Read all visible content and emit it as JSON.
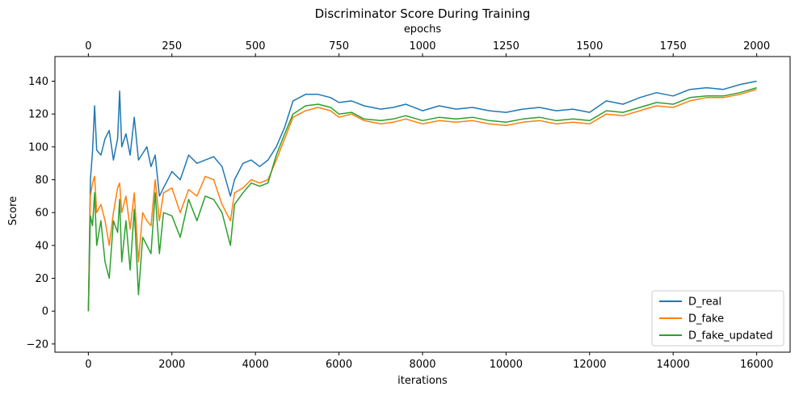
{
  "chart_data": {
    "type": "line",
    "title": "Discriminator Score During Training",
    "xlabel": "iterations",
    "ylabel": "Score",
    "secondary_xlabel": "epochs",
    "xlim": [
      -800,
      16800
    ],
    "ylim": [
      -25,
      155
    ],
    "secondary_xlim": [
      -100,
      2100
    ],
    "x_ticks": [
      0,
      2000,
      4000,
      6000,
      8000,
      10000,
      12000,
      14000,
      16000
    ],
    "x_tick_labels": [
      "0",
      "2000",
      "4000",
      "6000",
      "8000",
      "10000",
      "12000",
      "14000",
      "16000"
    ],
    "y_ticks": [
      -20,
      0,
      20,
      40,
      60,
      80,
      100,
      120,
      140
    ],
    "y_tick_labels": [
      "−20",
      "0",
      "20",
      "40",
      "60",
      "80",
      "100",
      "120",
      "140"
    ],
    "secondary_x_ticks": [
      0,
      250,
      500,
      750,
      1000,
      1250,
      1500,
      1750,
      2000
    ],
    "secondary_x_tick_labels": [
      "0",
      "250",
      "500",
      "750",
      "1000",
      "1250",
      "1500",
      "1750",
      "2000"
    ],
    "grid": false,
    "legend_position": "lower-right",
    "x": [
      0,
      50,
      100,
      150,
      200,
      300,
      400,
      500,
      600,
      700,
      750,
      800,
      900,
      1000,
      1100,
      1200,
      1300,
      1400,
      1500,
      1600,
      1700,
      1800,
      2000,
      2200,
      2400,
      2600,
      2800,
      3000,
      3200,
      3400,
      3500,
      3700,
      3900,
      4100,
      4300,
      4500,
      4700,
      4900,
      5200,
      5500,
      5800,
      6000,
      6300,
      6600,
      7000,
      7300,
      7600,
      8000,
      8400,
      8800,
      9200,
      9600,
      10000,
      10400,
      10800,
      11200,
      11600,
      12000,
      12400,
      12800,
      13200,
      13600,
      14000,
      14400,
      14800,
      15200,
      15600,
      16000
    ],
    "series": [
      {
        "name": "D_real",
        "color": "#1f77b4",
        "values": [
          0,
          80,
          97,
          125,
          98,
          95,
          105,
          110,
          92,
          105,
          134,
          100,
          108,
          95,
          118,
          92,
          96,
          100,
          88,
          95,
          70,
          75,
          85,
          80,
          95,
          90,
          92,
          94,
          88,
          70,
          80,
          90,
          92,
          88,
          92,
          100,
          112,
          128,
          132,
          132,
          130,
          127,
          128,
          125,
          123,
          124,
          126,
          122,
          125,
          123,
          124,
          122,
          121,
          123,
          124,
          122,
          123,
          121,
          128,
          126,
          130,
          133,
          131,
          135,
          136,
          135,
          138,
          140
        ]
      },
      {
        "name": "D_fake",
        "color": "#ff7f0e",
        "values": [
          0,
          70,
          78,
          82,
          60,
          65,
          55,
          40,
          60,
          75,
          78,
          60,
          70,
          50,
          72,
          30,
          60,
          55,
          52,
          80,
          55,
          72,
          75,
          60,
          74,
          70,
          82,
          80,
          65,
          55,
          72,
          75,
          80,
          78,
          80,
          92,
          105,
          118,
          122,
          124,
          122,
          118,
          120,
          116,
          114,
          115,
          117,
          114,
          116,
          115,
          116,
          114,
          113,
          115,
          116,
          114,
          115,
          114,
          120,
          119,
          122,
          125,
          124,
          128,
          130,
          130,
          132,
          135
        ]
      },
      {
        "name": "D_fake_updated",
        "color": "#2ca02c",
        "values": [
          0,
          58,
          52,
          72,
          40,
          55,
          30,
          20,
          55,
          48,
          68,
          30,
          55,
          25,
          62,
          10,
          45,
          40,
          35,
          72,
          35,
          60,
          58,
          45,
          68,
          55,
          70,
          68,
          60,
          40,
          65,
          72,
          78,
          76,
          78,
          95,
          108,
          120,
          125,
          126,
          124,
          120,
          121,
          117,
          116,
          117,
          119,
          116,
          118,
          117,
          118,
          116,
          115,
          117,
          118,
          116,
          117,
          116,
          122,
          121,
          124,
          127,
          126,
          130,
          131,
          131,
          133,
          136
        ]
      }
    ]
  }
}
